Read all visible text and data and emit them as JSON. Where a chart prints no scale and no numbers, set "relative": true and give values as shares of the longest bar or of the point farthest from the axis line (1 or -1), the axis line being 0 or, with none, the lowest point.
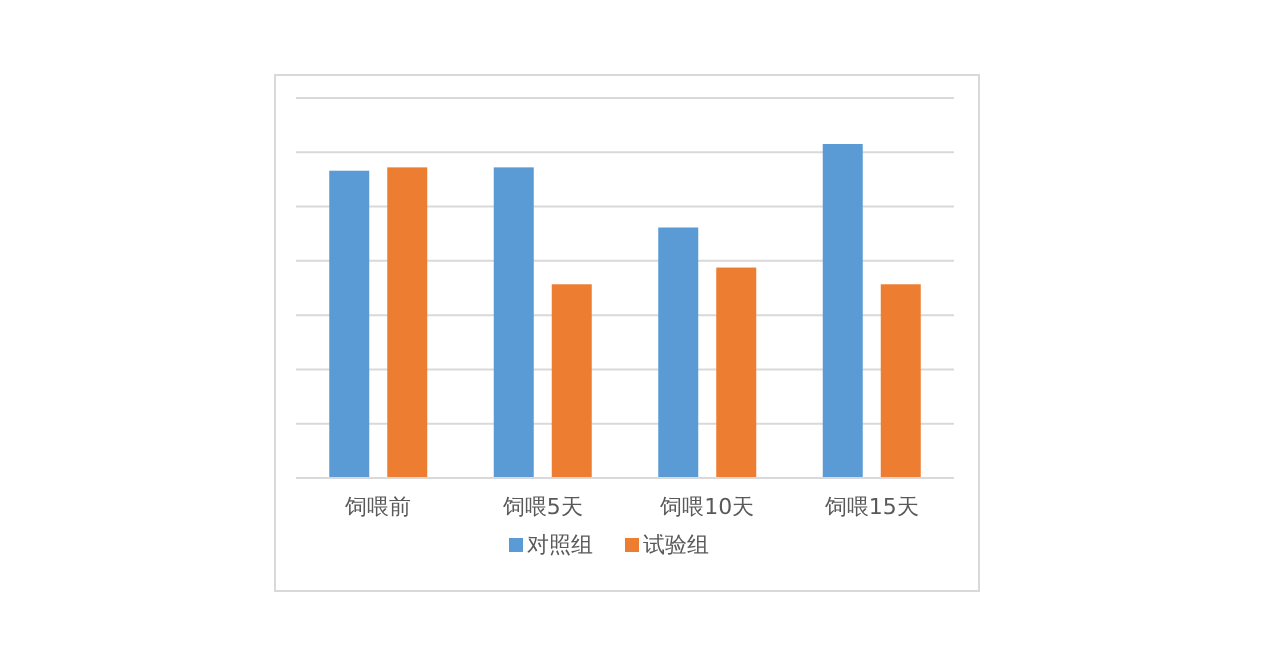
{
  "chart_data": {
    "type": "bar",
    "relative": true,
    "grid": true,
    "legend": "bottom",
    "categories": [
      "饲喂前",
      "饲喂5天",
      "饲喂10天",
      "饲喂15天"
    ],
    "series": [
      {
        "name": "对照组",
        "color": "#5b9bd5",
        "values": [
          0.92,
          0.93,
          0.75,
          1
        ]
      },
      {
        "name": "试验组",
        "color": "#ed7d31",
        "values": [
          0.93,
          0.58,
          0.63,
          0.58
        ]
      }
    ]
  }
}
